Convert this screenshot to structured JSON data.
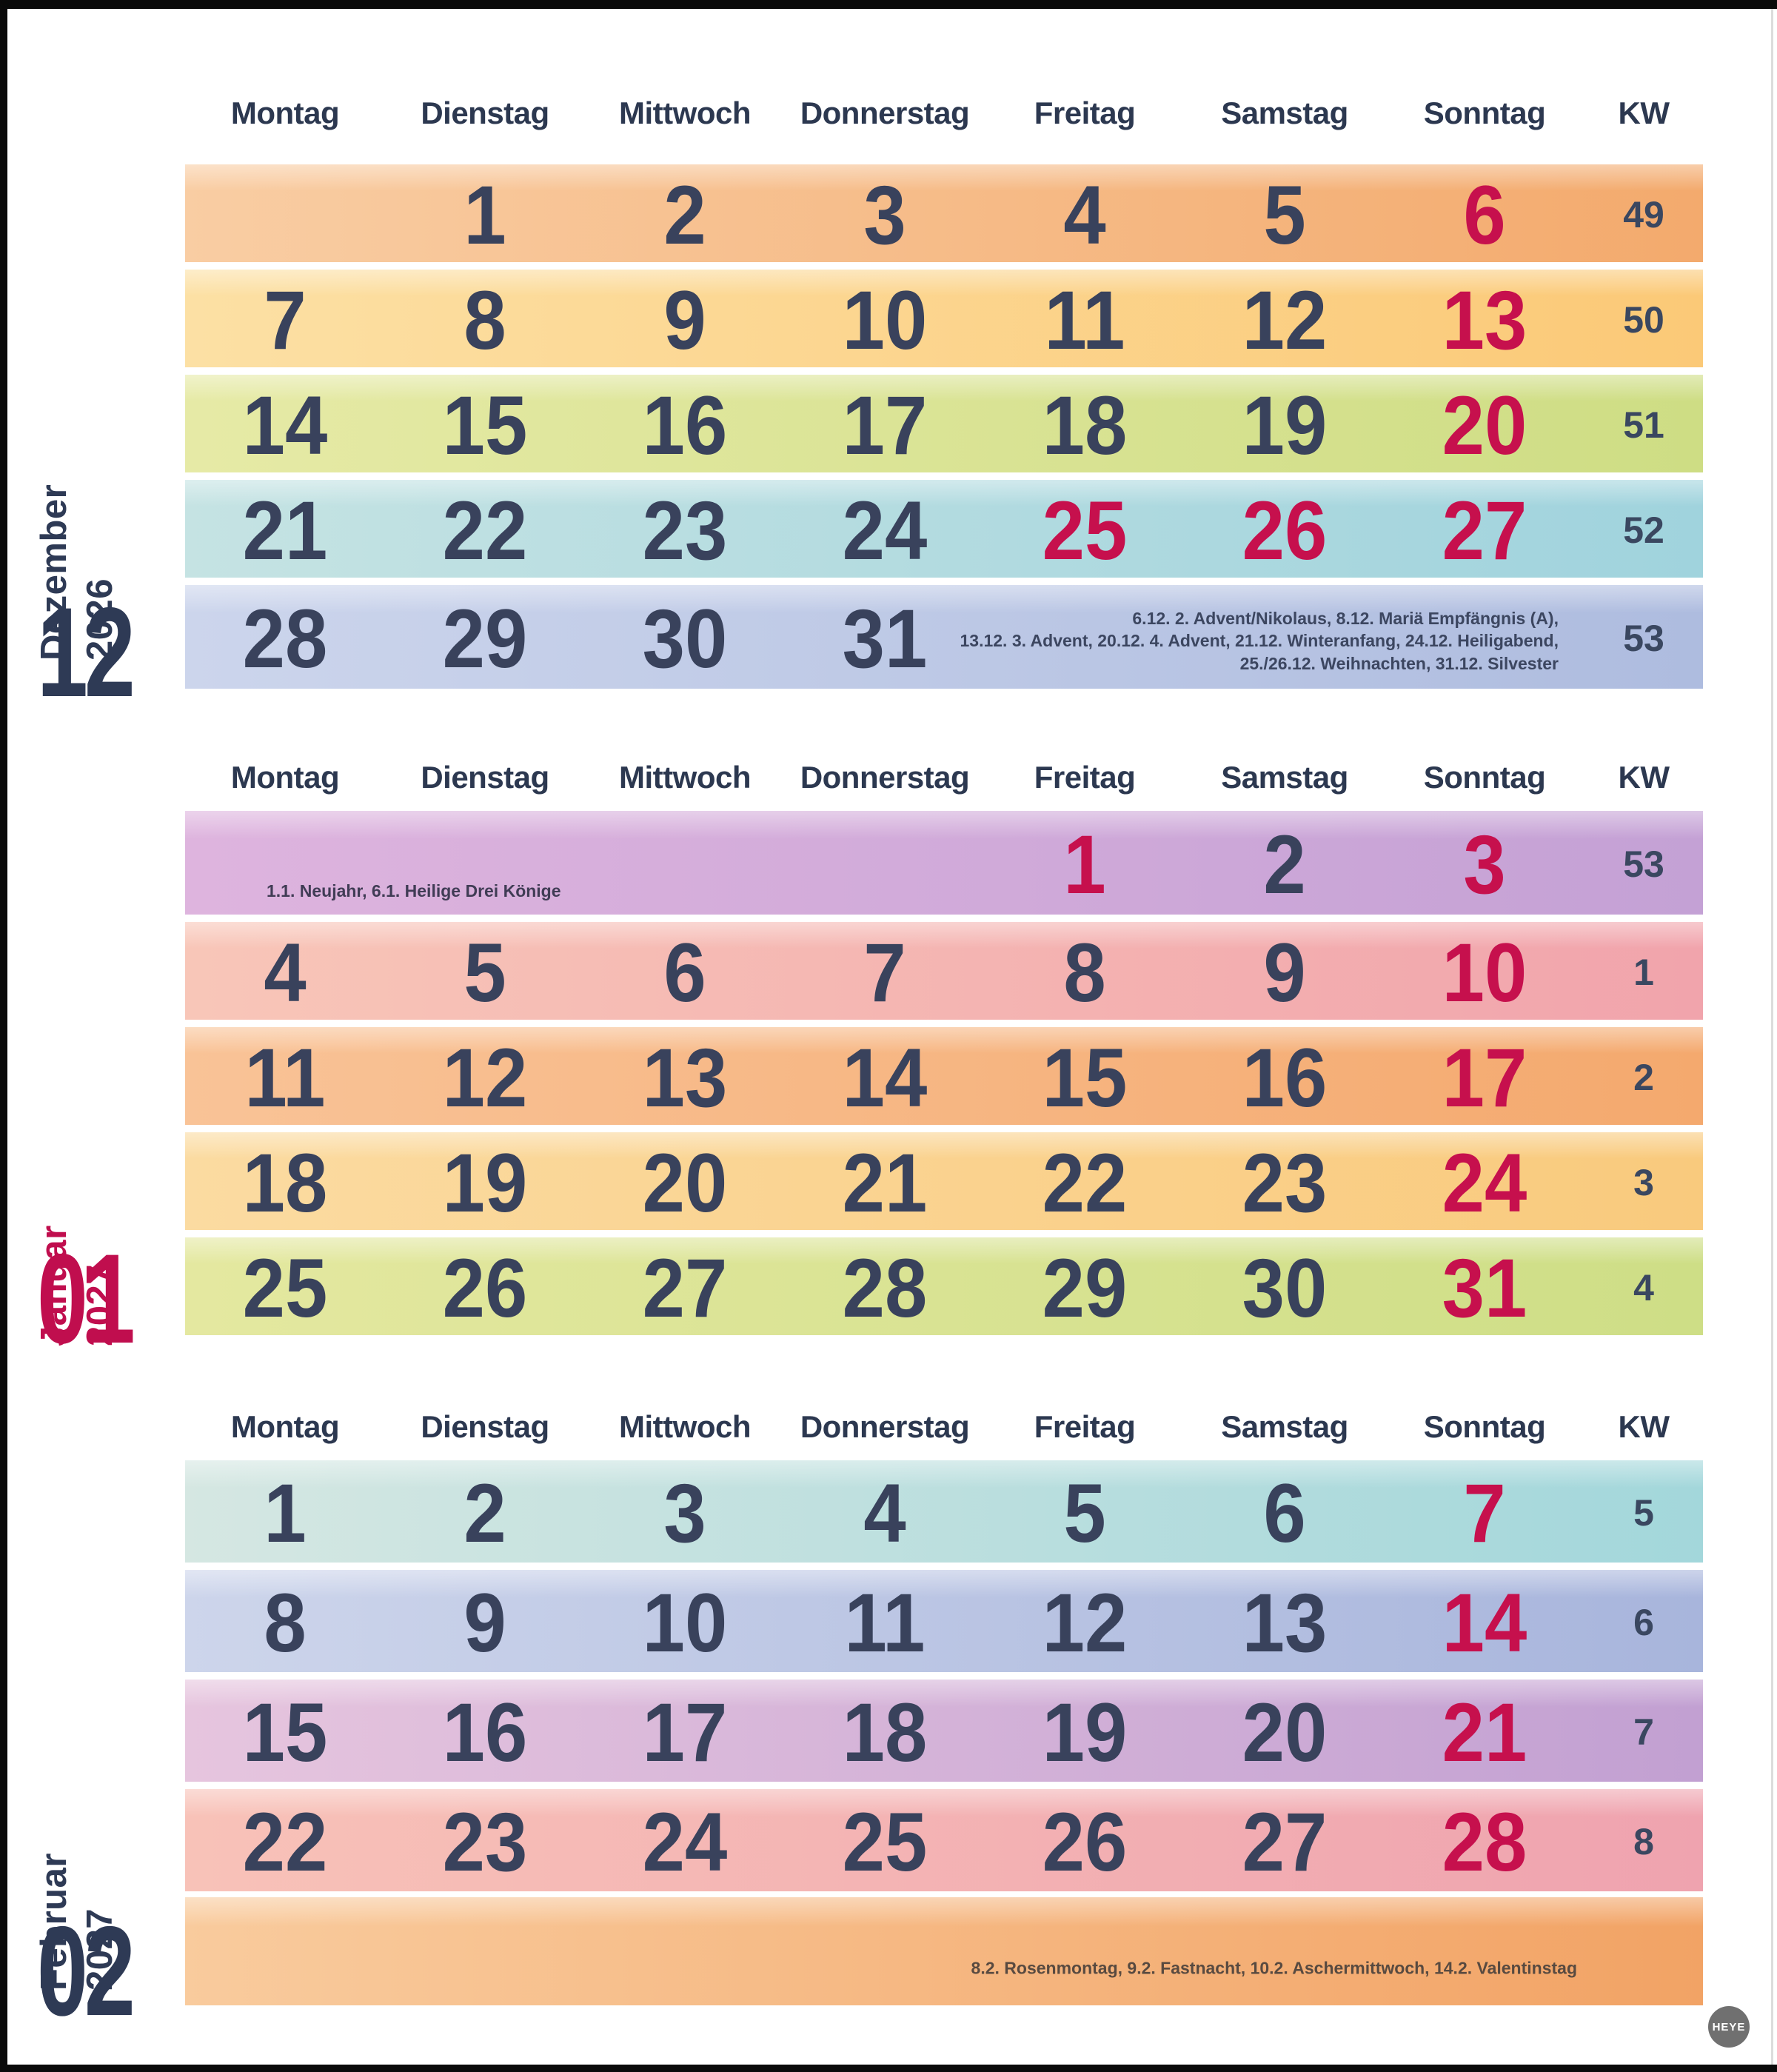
{
  "weekday_headers": [
    "Montag",
    "Dienstag",
    "Mittwoch",
    "Donnerstag",
    "Freitag",
    "Samstag",
    "Sonntag",
    "KW"
  ],
  "colors": {
    "navy_text": "#39425c",
    "header_text": "#2c3850",
    "kw_text": "#3a4760",
    "red_accent": "#c6104d",
    "label_navy": "#2e3a55",
    "label_red": "#c00e4e",
    "page_edge": "#0a0a0a"
  },
  "months": [
    {
      "name": "Dezember",
      "year": "2026",
      "big_number": "12",
      "label_color": "#2e3a55",
      "note_color": "#3c4660",
      "rows": [
        {
          "kw": "49",
          "days": [
            "",
            "1",
            "2",
            "3",
            "4",
            "5",
            "6"
          ],
          "red": [
            6
          ],
          "colors": [
            "#f9cda3",
            "#f3aa6d"
          ]
        },
        {
          "kw": "50",
          "days": [
            "7",
            "8",
            "9",
            "10",
            "11",
            "12",
            "13"
          ],
          "red": [
            6
          ],
          "colors": [
            "#fce0a4",
            "#fbc977"
          ]
        },
        {
          "kw": "51",
          "days": [
            "14",
            "15",
            "16",
            "17",
            "18",
            "19",
            "20"
          ],
          "red": [
            6
          ],
          "colors": [
            "#e6eaa6",
            "#cedd84"
          ]
        },
        {
          "kw": "52",
          "days": [
            "21",
            "22",
            "23",
            "24",
            "25",
            "26",
            "27"
          ],
          "red": [
            4,
            5,
            6
          ],
          "colors": [
            "#c5e3e3",
            "#a0d3dd"
          ]
        },
        {
          "kw": "53",
          "days": [
            "28",
            "29",
            "30",
            "31",
            "",
            "",
            ""
          ],
          "red": [],
          "colors": [
            "#ccd5ec",
            "#aebcdf"
          ],
          "note": {
            "pos": "center-right",
            "lines": [
              "6.12. 2. Advent/Nikolaus, 8.12. Mariä Empfängnis (A),",
              "13.12. 3. Advent, 20.12. 4. Advent, 21.12. Winteranfang, 24.12. Heiligabend,",
              "25./26.12. Weihnachten, 31.12. Silvester"
            ]
          }
        }
      ]
    },
    {
      "name": "Januar",
      "year": "2027",
      "big_number": "01",
      "label_color": "#c00e4e",
      "note_color": "#403c55",
      "rows": [
        {
          "kw": "53",
          "days": [
            "",
            "",
            "",
            "",
            "1",
            "2",
            "3"
          ],
          "red": [
            4,
            6
          ],
          "colors": [
            "#deb4de",
            "#c4a1d5"
          ],
          "note": {
            "pos": "bottom-left",
            "lines": [
              "1.1. Neujahr, 6.1. Heilige Drei Könige"
            ]
          }
        },
        {
          "kw": "1",
          "days": [
            "4",
            "5",
            "6",
            "7",
            "8",
            "9",
            "10"
          ],
          "red": [
            6
          ],
          "colors": [
            "#f8c6b8",
            "#f1a4ac"
          ]
        },
        {
          "kw": "2",
          "days": [
            "11",
            "12",
            "13",
            "14",
            "15",
            "16",
            "17"
          ],
          "red": [
            6
          ],
          "colors": [
            "#f9c397",
            "#f4a96e"
          ]
        },
        {
          "kw": "3",
          "days": [
            "18",
            "19",
            "20",
            "21",
            "22",
            "23",
            "24"
          ],
          "red": [
            6
          ],
          "colors": [
            "#fbdba1",
            "#f9ca7d"
          ]
        },
        {
          "kw": "4",
          "days": [
            "25",
            "26",
            "27",
            "28",
            "29",
            "30",
            "31"
          ],
          "red": [
            6
          ],
          "colors": [
            "#e4e8a0",
            "#cede86"
          ]
        }
      ]
    },
    {
      "name": "Februar",
      "year": "2027",
      "big_number": "02",
      "label_color": "#2e3a55",
      "note_color": "#584a40",
      "rows": [
        {
          "kw": "5",
          "days": [
            "1",
            "2",
            "3",
            "4",
            "5",
            "6",
            "7"
          ],
          "red": [
            6
          ],
          "colors": [
            "#d5e7e2",
            "#a3d7db"
          ]
        },
        {
          "kw": "6",
          "days": [
            "8",
            "9",
            "10",
            "11",
            "12",
            "13",
            "14"
          ],
          "red": [
            6
          ],
          "colors": [
            "#cdd5eb",
            "#a8b5dc"
          ]
        },
        {
          "kw": "7",
          "days": [
            "15",
            "16",
            "17",
            "18",
            "19",
            "20",
            "21"
          ],
          "red": [
            6
          ],
          "colors": [
            "#e6c5de",
            "#c2a0d2"
          ]
        },
        {
          "kw": "8",
          "days": [
            "22",
            "23",
            "24",
            "25",
            "26",
            "27",
            "28"
          ],
          "red": [
            6
          ],
          "colors": [
            "#f8c2b8",
            "#efa3af"
          ]
        },
        {
          "kw": "",
          "days": [
            "",
            "",
            "",
            "",
            "",
            "",
            ""
          ],
          "red": [],
          "colors": [
            "#f9cb9d",
            "#f2a365"
          ],
          "note": {
            "pos": "strip-right",
            "lines": [
              "8.2. Rosenmontag, 9.2. Fastnacht, 10.2. Aschermittwoch, 14.2. Valentinstag"
            ]
          }
        }
      ]
    }
  ],
  "logo": {
    "text": "HEYE",
    "bg": "#707070",
    "fg": "#ffffff"
  }
}
